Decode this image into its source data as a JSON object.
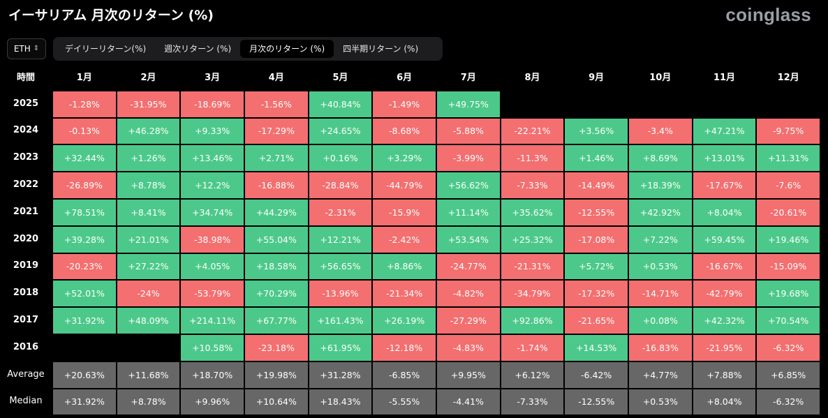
{
  "title": "イーサリアム 月次のリターン (%)",
  "brand": "coinglass",
  "asset": {
    "label": "ETH",
    "icon": "chevron-updown-icon"
  },
  "tabs": [
    {
      "label": "デイリーリターン(%)",
      "active": false
    },
    {
      "label": "週次リターン (%)",
      "active": false
    },
    {
      "label": "月次のリターン (%)",
      "active": true
    },
    {
      "label": "四半期リターン (%)",
      "active": false
    }
  ],
  "colors": {
    "positive": "#4cc98a",
    "negative": "#f36f70",
    "stat": "#676767",
    "background": "#000000"
  },
  "chart_data": {
    "type": "table",
    "title": "イーサリアム 月次のリターン (%)",
    "corner_label": "時間",
    "columns": [
      "1月",
      "2月",
      "3月",
      "4月",
      "5月",
      "6月",
      "7月",
      "8月",
      "9月",
      "10月",
      "11月",
      "12月"
    ],
    "rows": [
      {
        "label": "2025",
        "kind": "year",
        "values": [
          "-1.28%",
          "-31.95%",
          "-18.69%",
          "-1.56%",
          "+40.84%",
          "-1.49%",
          "+49.75%",
          "",
          "",
          "",
          "",
          ""
        ]
      },
      {
        "label": "2024",
        "kind": "year",
        "values": [
          "-0.13%",
          "+46.28%",
          "+9.33%",
          "-17.29%",
          "+24.65%",
          "-8.68%",
          "-5.88%",
          "-22.21%",
          "+3.56%",
          "-3.4%",
          "+47.21%",
          "-9.75%"
        ]
      },
      {
        "label": "2023",
        "kind": "year",
        "values": [
          "+32.44%",
          "+1.26%",
          "+13.46%",
          "+2.71%",
          "+0.16%",
          "+3.29%",
          "-3.99%",
          "-11.3%",
          "+1.46%",
          "+8.69%",
          "+13.01%",
          "+11.31%"
        ]
      },
      {
        "label": "2022",
        "kind": "year",
        "values": [
          "-26.89%",
          "+8.78%",
          "+12.2%",
          "-16.88%",
          "-28.84%",
          "-44.79%",
          "+56.62%",
          "-7.33%",
          "-14.49%",
          "+18.39%",
          "-17.67%",
          "-7.6%"
        ]
      },
      {
        "label": "2021",
        "kind": "year",
        "values": [
          "+78.51%",
          "+8.41%",
          "+34.74%",
          "+44.29%",
          "-2.31%",
          "-15.9%",
          "+11.14%",
          "+35.62%",
          "-12.55%",
          "+42.92%",
          "+8.04%",
          "-20.61%"
        ]
      },
      {
        "label": "2020",
        "kind": "year",
        "values": [
          "+39.28%",
          "+21.01%",
          "-38.98%",
          "+55.04%",
          "+12.21%",
          "-2.42%",
          "+53.54%",
          "+25.32%",
          "-17.08%",
          "+7.22%",
          "+59.45%",
          "+19.46%"
        ]
      },
      {
        "label": "2019",
        "kind": "year",
        "values": [
          "-20.23%",
          "+27.22%",
          "+4.05%",
          "+18.58%",
          "+56.65%",
          "+8.86%",
          "-24.77%",
          "-21.31%",
          "+5.72%",
          "+0.53%",
          "-16.67%",
          "-15.09%"
        ]
      },
      {
        "label": "2018",
        "kind": "year",
        "values": [
          "+52.01%",
          "-24%",
          "-53.79%",
          "+70.29%",
          "-13.96%",
          "-21.34%",
          "-4.82%",
          "-34.79%",
          "-17.32%",
          "-14.71%",
          "-42.79%",
          "+19.68%"
        ]
      },
      {
        "label": "2017",
        "kind": "year",
        "values": [
          "+31.92%",
          "+48.09%",
          "+214.11%",
          "+67.77%",
          "+161.43%",
          "+26.19%",
          "-27.29%",
          "+92.86%",
          "-21.65%",
          "+0.08%",
          "+42.32%",
          "+70.54%"
        ]
      },
      {
        "label": "2016",
        "kind": "year",
        "values": [
          "",
          "",
          "+10.58%",
          "-23.18%",
          "+61.95%",
          "-12.18%",
          "-4.83%",
          "-1.74%",
          "+14.53%",
          "-16.83%",
          "-21.95%",
          "-6.32%"
        ]
      },
      {
        "label": "Average",
        "kind": "stat",
        "values": [
          "+20.63%",
          "+11.68%",
          "+18.70%",
          "+19.98%",
          "+31.28%",
          "-6.85%",
          "+9.95%",
          "+6.12%",
          "-6.42%",
          "+4.77%",
          "+7.88%",
          "+6.85%"
        ]
      },
      {
        "label": "Median",
        "kind": "stat",
        "values": [
          "+31.92%",
          "+8.78%",
          "+9.96%",
          "+10.64%",
          "+18.43%",
          "-5.55%",
          "-4.41%",
          "-7.33%",
          "-12.55%",
          "+0.53%",
          "+8.04%",
          "-6.32%"
        ]
      }
    ]
  }
}
